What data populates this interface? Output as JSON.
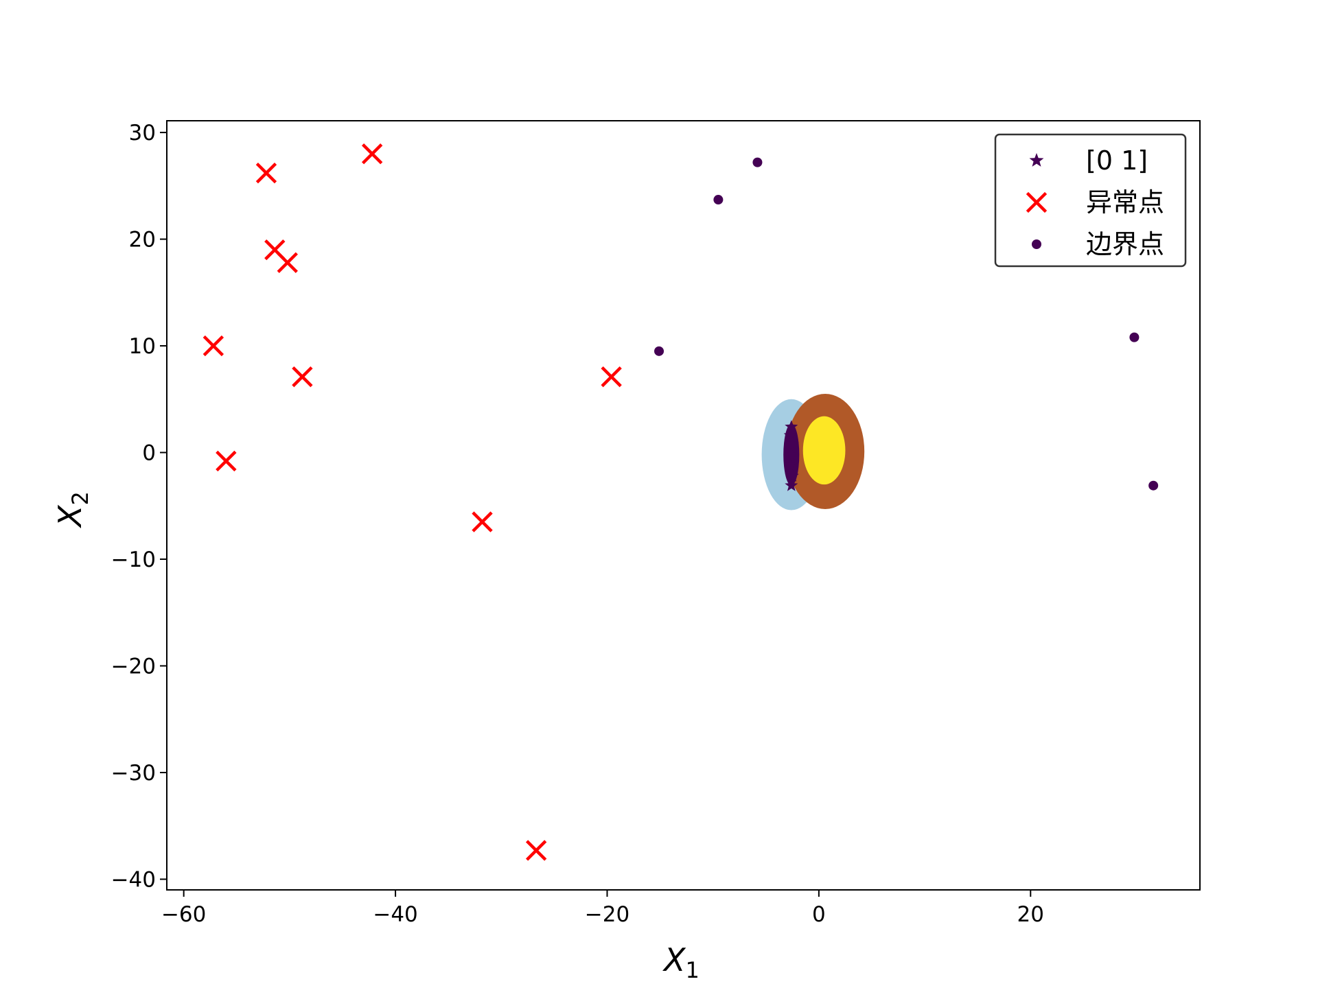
{
  "chart_data": {
    "type": "scatter",
    "title": "",
    "xlabel": "X",
    "xlabel_sub": "1",
    "ylabel": "X",
    "ylabel_sub": "2",
    "xlim": [
      -61.6,
      36
    ],
    "ylim": [
      -41,
      31.1
    ],
    "xticks": [
      -60,
      -40,
      -20,
      0,
      20
    ],
    "yticks": [
      30,
      20,
      10,
      0,
      -10,
      -20,
      -30,
      -40
    ],
    "legend_position": "top-right",
    "grid": false,
    "regions": [
      {
        "name": "light-blue-region",
        "color": "#a6cee3",
        "cx": -2.6,
        "cy": -0.2,
        "rx": 2.8,
        "ry": 5.2
      },
      {
        "name": "brown-region",
        "color": "#b15928",
        "cx": 0.6,
        "cy": 0.1,
        "rx": 3.7,
        "ry": 5.4
      },
      {
        "name": "yellow-cluster",
        "color": "#fde725",
        "cx": 0.5,
        "cy": 0.2,
        "rx": 2.0,
        "ry": 3.2
      },
      {
        "name": "purple-cluster",
        "color": "#440154",
        "cx": -2.6,
        "cy": -0.2,
        "rx": 0.75,
        "ry": 2.9
      }
    ],
    "series": [
      {
        "name": "[0 1]",
        "marker": "star",
        "color": "#440154",
        "points": [
          [
            -2.6,
            2.4
          ],
          [
            -2.7,
            1.6
          ],
          [
            -2.5,
            0.8
          ],
          [
            -2.6,
            -0.2
          ],
          [
            -2.7,
            -1.2
          ],
          [
            -2.5,
            -2.2
          ],
          [
            -2.6,
            -3.1
          ]
        ]
      },
      {
        "name": "异常点",
        "marker": "x",
        "color": "#ff0000",
        "points": [
          [
            -42.2,
            28.0
          ],
          [
            -52.2,
            26.2
          ],
          [
            -51.4,
            19.0
          ],
          [
            -50.2,
            17.8
          ],
          [
            -57.2,
            10.0
          ],
          [
            -48.8,
            7.1
          ],
          [
            -19.6,
            7.1
          ],
          [
            -56.0,
            -0.8
          ],
          [
            -31.8,
            -6.5
          ],
          [
            -26.7,
            -37.3
          ]
        ]
      },
      {
        "name": "边界点",
        "marker": "circle",
        "color": "#440154",
        "points": [
          [
            -5.8,
            27.2
          ],
          [
            -9.5,
            23.7
          ],
          [
            -15.1,
            9.5
          ],
          [
            29.8,
            10.8
          ],
          [
            31.6,
            -3.1
          ]
        ]
      }
    ]
  }
}
